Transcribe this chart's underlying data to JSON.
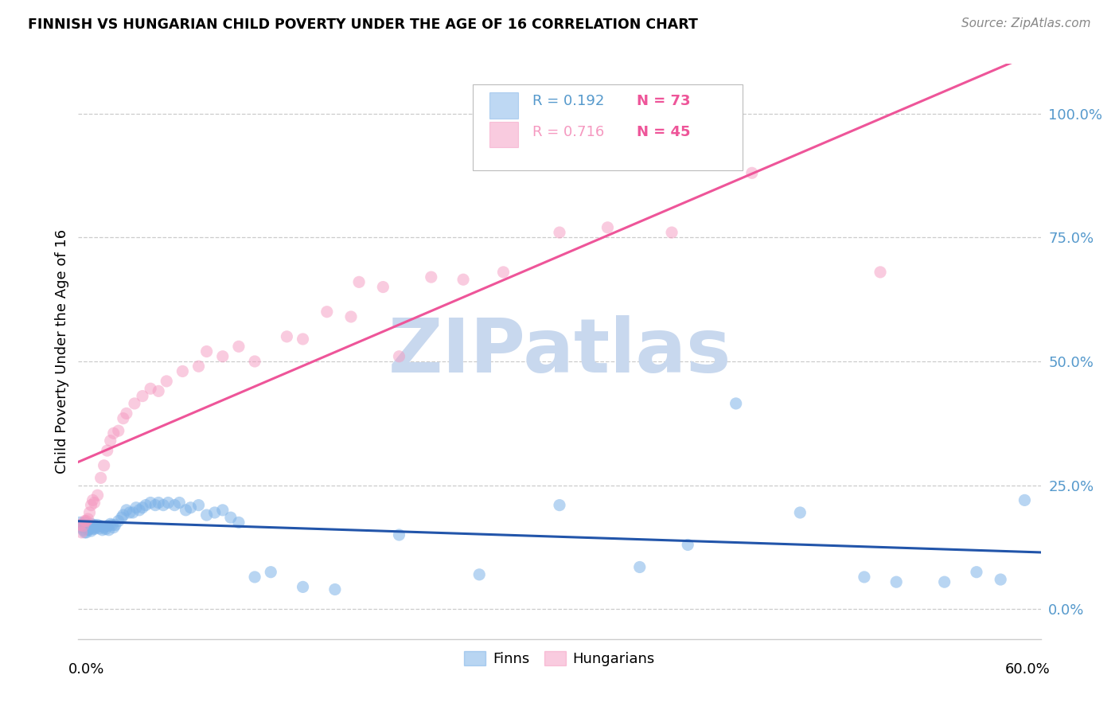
{
  "title": "FINNISH VS HUNGARIAN CHILD POVERTY UNDER THE AGE OF 16 CORRELATION CHART",
  "source": "Source: ZipAtlas.com",
  "ylabel": "Child Poverty Under the Age of 16",
  "xlim": [
    0.0,
    0.6
  ],
  "ylim": [
    -0.06,
    1.1
  ],
  "yticks": [
    0.0,
    0.25,
    0.5,
    0.75,
    1.0
  ],
  "ytick_labels": [
    "0.0%",
    "25.0%",
    "50.0%",
    "75.0%",
    "100.0%"
  ],
  "finns_R": 0.192,
  "finns_N": 73,
  "hungarian_R": 0.716,
  "hungarian_N": 45,
  "finns_color": "#7EB3E8",
  "hungarian_color": "#F599C0",
  "regression_finn_color": "#2255AA",
  "regression_hungarian_color": "#EE5599",
  "watermark_text": "ZIPatlas",
  "watermark_color": "#C8D8EE",
  "axis_tick_color": "#5599CC",
  "finns_x": [
    0.001,
    0.002,
    0.003,
    0.003,
    0.004,
    0.004,
    0.005,
    0.005,
    0.006,
    0.006,
    0.007,
    0.007,
    0.008,
    0.008,
    0.009,
    0.009,
    0.01,
    0.01,
    0.011,
    0.012,
    0.013,
    0.014,
    0.015,
    0.016,
    0.017,
    0.018,
    0.019,
    0.02,
    0.021,
    0.022,
    0.023,
    0.025,
    0.027,
    0.028,
    0.03,
    0.032,
    0.034,
    0.036,
    0.038,
    0.04,
    0.042,
    0.045,
    0.048,
    0.05,
    0.053,
    0.056,
    0.06,
    0.063,
    0.067,
    0.07,
    0.075,
    0.08,
    0.085,
    0.09,
    0.095,
    0.1,
    0.11,
    0.12,
    0.14,
    0.16,
    0.2,
    0.25,
    0.3,
    0.35,
    0.38,
    0.41,
    0.45,
    0.49,
    0.51,
    0.54,
    0.56,
    0.575,
    0.59
  ],
  "finns_y": [
    0.175,
    0.165,
    0.17,
    0.16,
    0.175,
    0.155,
    0.17,
    0.155,
    0.165,
    0.16,
    0.168,
    0.162,
    0.172,
    0.158,
    0.167,
    0.163,
    0.17,
    0.162,
    0.165,
    0.17,
    0.163,
    0.168,
    0.16,
    0.165,
    0.162,
    0.168,
    0.16,
    0.172,
    0.17,
    0.165,
    0.17,
    0.178,
    0.185,
    0.19,
    0.2,
    0.195,
    0.195,
    0.205,
    0.2,
    0.205,
    0.21,
    0.215,
    0.21,
    0.215,
    0.21,
    0.215,
    0.21,
    0.215,
    0.2,
    0.205,
    0.21,
    0.19,
    0.195,
    0.2,
    0.185,
    0.175,
    0.065,
    0.075,
    0.045,
    0.04,
    0.15,
    0.07,
    0.21,
    0.085,
    0.13,
    0.415,
    0.195,
    0.065,
    0.055,
    0.055,
    0.075,
    0.06,
    0.22
  ],
  "hungarian_x": [
    0.001,
    0.002,
    0.003,
    0.004,
    0.005,
    0.006,
    0.007,
    0.008,
    0.009,
    0.01,
    0.012,
    0.014,
    0.016,
    0.018,
    0.02,
    0.022,
    0.025,
    0.028,
    0.03,
    0.035,
    0.04,
    0.045,
    0.05,
    0.055,
    0.065,
    0.075,
    0.08,
    0.09,
    0.1,
    0.11,
    0.13,
    0.14,
    0.155,
    0.17,
    0.175,
    0.19,
    0.2,
    0.22,
    0.24,
    0.265,
    0.3,
    0.33,
    0.37,
    0.42,
    0.5
  ],
  "hungarian_y": [
    0.17,
    0.155,
    0.168,
    0.178,
    0.178,
    0.182,
    0.195,
    0.21,
    0.22,
    0.215,
    0.23,
    0.265,
    0.29,
    0.32,
    0.34,
    0.355,
    0.36,
    0.385,
    0.395,
    0.415,
    0.43,
    0.445,
    0.44,
    0.46,
    0.48,
    0.49,
    0.52,
    0.51,
    0.53,
    0.5,
    0.55,
    0.545,
    0.6,
    0.59,
    0.66,
    0.65,
    0.51,
    0.67,
    0.665,
    0.68,
    0.76,
    0.77,
    0.76,
    0.88,
    0.68
  ]
}
